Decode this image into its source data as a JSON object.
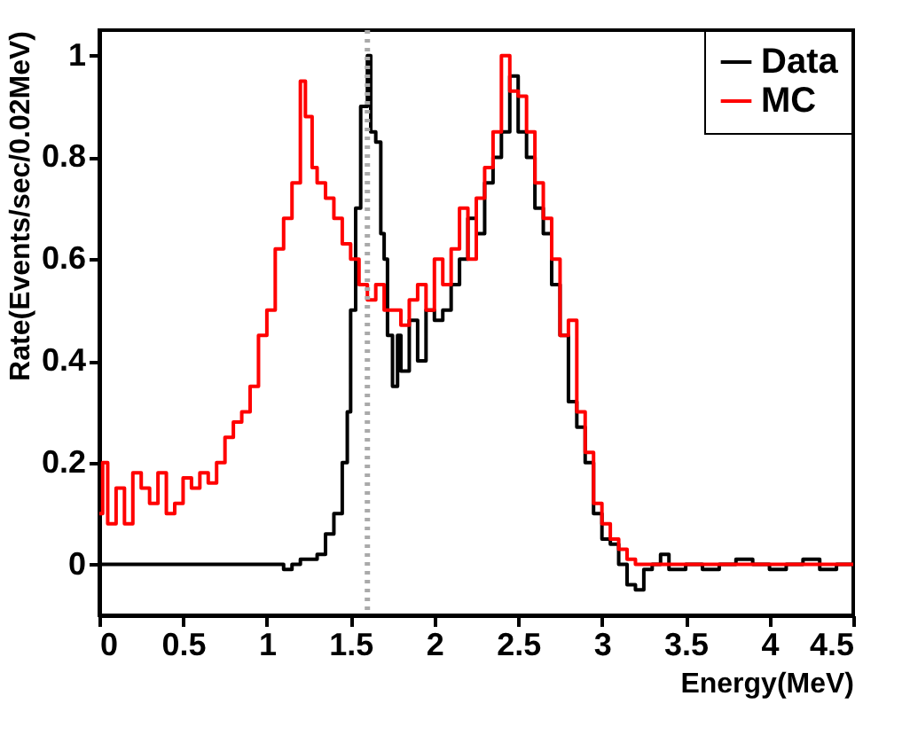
{
  "chart_data": {
    "type": "step",
    "xlabel": "Energy(MeV)",
    "ylabel": "Rate(Events/sec/0.02MeV)",
    "xlim": [
      0,
      4.5
    ],
    "xticks": [
      0,
      0.5,
      1,
      1.5,
      2,
      2.5,
      3,
      3.5,
      4,
      4.5
    ],
    "ylim": [
      -0.1,
      1.05
    ],
    "yticks": [
      0,
      0.2,
      0.4,
      0.6,
      0.8,
      1
    ],
    "grid": false,
    "legend": "top right",
    "line_style": "solid",
    "marker": "none",
    "ref_lines": [
      {
        "axis": "x",
        "value": 1.6,
        "color": "#aaaaaa",
        "line_style": "dotted"
      }
    ],
    "series": [
      {
        "name": "Data",
        "color": "#000000",
        "x": [
          0,
          0.5,
          1.0,
          1.1,
          1.15,
          1.2,
          1.3,
          1.35,
          1.4,
          1.45,
          1.48,
          1.5,
          1.53,
          1.56,
          1.6,
          1.62,
          1.65,
          1.68,
          1.7,
          1.72,
          1.75,
          1.78,
          1.8,
          1.85,
          1.9,
          1.95,
          2.0,
          2.05,
          2.1,
          2.15,
          2.2,
          2.25,
          2.3,
          2.35,
          2.4,
          2.45,
          2.5,
          2.55,
          2.6,
          2.65,
          2.7,
          2.75,
          2.8,
          2.85,
          2.9,
          2.95,
          3.0,
          3.05,
          3.1,
          3.15,
          3.2,
          3.25,
          3.3,
          3.35,
          3.4,
          3.5,
          3.6,
          3.7,
          3.8,
          3.9,
          4.0,
          4.1,
          4.2,
          4.3,
          4.4,
          4.5
        ],
        "values": [
          0,
          0,
          0,
          -0.01,
          0,
          0.01,
          0.02,
          0.06,
          0.1,
          0.2,
          0.3,
          0.5,
          0.7,
          0.9,
          1.0,
          0.85,
          0.83,
          0.65,
          0.6,
          0.45,
          0.35,
          0.45,
          0.38,
          0.48,
          0.4,
          0.5,
          0.48,
          0.5,
          0.55,
          0.6,
          0.68,
          0.65,
          0.75,
          0.8,
          0.85,
          0.96,
          0.85,
          0.8,
          0.7,
          0.65,
          0.55,
          0.45,
          0.32,
          0.27,
          0.2,
          0.1,
          0.05,
          0.04,
          0.0,
          -0.04,
          -0.05,
          -0.01,
          0.0,
          0.02,
          -0.01,
          0.0,
          -0.01,
          0.0,
          0.01,
          0.0,
          -0.01,
          0.0,
          0.01,
          -0.01,
          0.0,
          0.0
        ]
      },
      {
        "name": "MC",
        "color": "#ff0000",
        "x": [
          0,
          0.02,
          0.05,
          0.1,
          0.15,
          0.2,
          0.25,
          0.3,
          0.35,
          0.4,
          0.45,
          0.5,
          0.55,
          0.6,
          0.65,
          0.7,
          0.75,
          0.8,
          0.85,
          0.9,
          0.95,
          1.0,
          1.05,
          1.1,
          1.15,
          1.2,
          1.23,
          1.27,
          1.3,
          1.35,
          1.4,
          1.45,
          1.5,
          1.55,
          1.6,
          1.65,
          1.7,
          1.75,
          1.8,
          1.85,
          1.9,
          1.95,
          2.0,
          2.05,
          2.1,
          2.15,
          2.2,
          2.25,
          2.3,
          2.35,
          2.4,
          2.45,
          2.5,
          2.55,
          2.6,
          2.65,
          2.7,
          2.75,
          2.8,
          2.85,
          2.9,
          2.95,
          3.0,
          3.05,
          3.1,
          3.15,
          3.2,
          3.5,
          4.0,
          4.5
        ],
        "values": [
          0.1,
          0.2,
          0.08,
          0.15,
          0.08,
          0.18,
          0.15,
          0.12,
          0.18,
          0.1,
          0.12,
          0.17,
          0.15,
          0.18,
          0.16,
          0.2,
          0.25,
          0.28,
          0.3,
          0.35,
          0.45,
          0.5,
          0.62,
          0.68,
          0.75,
          0.95,
          0.88,
          0.78,
          0.75,
          0.72,
          0.68,
          0.63,
          0.6,
          0.55,
          0.52,
          0.55,
          0.5,
          0.5,
          0.47,
          0.52,
          0.55,
          0.5,
          0.6,
          0.55,
          0.62,
          0.7,
          0.6,
          0.72,
          0.78,
          0.85,
          1.0,
          0.93,
          0.92,
          0.85,
          0.75,
          0.68,
          0.6,
          0.45,
          0.48,
          0.3,
          0.22,
          0.12,
          0.08,
          0.05,
          0.03,
          0.01,
          0.0,
          0.0,
          0.0,
          0.0
        ]
      }
    ]
  }
}
